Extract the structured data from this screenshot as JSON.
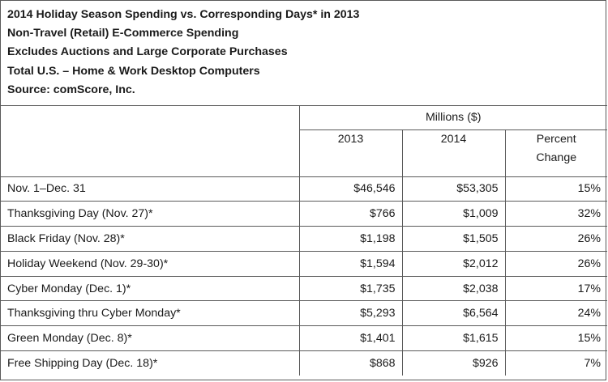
{
  "titles": [
    "2014 Holiday Season Spending vs. Corresponding Days* in 2013",
    "Non-Travel (Retail) E-Commerce Spending",
    "Excludes Auctions and Large Corporate Purchases",
    "Total U.S. – Home & Work Desktop Computers",
    "Source: comScore, Inc."
  ],
  "table": {
    "group_header": "Millions ($)",
    "columns": [
      "2013",
      "2014",
      "Percent",
      "Change"
    ],
    "rows": [
      {
        "label": "Nov. 1–Dec. 31",
        "y2013": "$46,546",
        "y2014": "$53,305",
        "pct": "15%"
      },
      {
        "label": "Thanksgiving Day (Nov. 27)*",
        "y2013": "$766",
        "y2014": "$1,009",
        "pct": "32%"
      },
      {
        "label": "Black Friday (Nov. 28)*",
        "y2013": "$1,198",
        "y2014": "$1,505",
        "pct": "26%"
      },
      {
        "label": "Holiday Weekend (Nov. 29-30)*",
        "y2013": "$1,594",
        "y2014": "$2,012",
        "pct": "26%"
      },
      {
        "label": "Cyber Monday (Dec. 1)*",
        "y2013": "$1,735",
        "y2014": "$2,038",
        "pct": "17%"
      },
      {
        "label": "Thanksgiving thru Cyber Monday*",
        "y2013": "$5,293",
        "y2014": "$6,564",
        "pct": "24%"
      },
      {
        "label": "Green Monday (Dec. 8)*",
        "y2013": "$1,401",
        "y2014": "$1,615",
        "pct": "15%"
      },
      {
        "label": "Free Shipping Day (Dec. 18)*",
        "y2013": "$868",
        "y2014": "$926",
        "pct": "7%"
      }
    ]
  }
}
